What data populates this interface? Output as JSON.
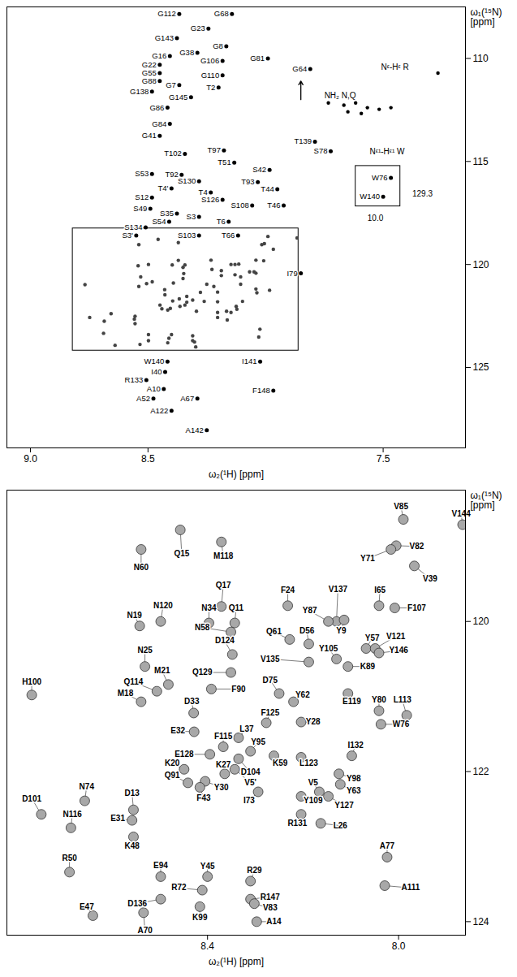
{
  "chart_data": [
    {
      "type": "scatter",
      "x_label": "ω₂(¹H) [ppm]",
      "y_label": "ω₁(¹⁵N) [ppm]",
      "xlim": [
        9.1,
        7.15
      ],
      "xticks": [
        {
          "value": 9,
          "label": "9.0"
        },
        8.5,
        7.5
      ],
      "ylim": [
        107.5,
        128.9
      ],
      "yticks": [
        110,
        115,
        120,
        125
      ],
      "color": "#000000",
      "peaks": {
        "labels": [
          "G112",
          "G23",
          "G68",
          "G143",
          "G8",
          "G38",
          "G16",
          "G106",
          "G81",
          "G64",
          "G22",
          "G55",
          "G110",
          "G88",
          "G7",
          "T2",
          "G138",
          "G145",
          "G86",
          "G84",
          "G41",
          "T139",
          "S78",
          "T97",
          "T102",
          "T51",
          "S42",
          "S53",
          "T92",
          "S130",
          "T93",
          "T44",
          "T4'",
          "T4",
          "S12",
          "S126",
          "T46",
          "S108",
          "S49",
          "S35",
          "S3",
          "S54",
          "T6",
          "S134",
          "S103",
          "T66",
          "S3'",
          "I79",
          "W140",
          "I141",
          "R133",
          "I40",
          "A10",
          "A52",
          "A67",
          "F148",
          "A122",
          "A142",
          "W76",
          "W140"
        ],
        "x": [
          8.367,
          8.243,
          8.143,
          8.377,
          8.167,
          8.29,
          8.407,
          8.183,
          7.99,
          7.81,
          8.45,
          8.45,
          8.183,
          8.45,
          8.367,
          8.2,
          8.483,
          8.317,
          8.417,
          8.407,
          8.45,
          7.79,
          7.723,
          8.177,
          8.343,
          8.133,
          7.983,
          8.483,
          8.357,
          8.283,
          8.033,
          7.95,
          8.4,
          8.233,
          8.483,
          8.183,
          7.923,
          8.057,
          8.49,
          8.377,
          8.283,
          8.41,
          8.157,
          8.51,
          8.283,
          8.117,
          8.55,
          7.85,
          8.417,
          8.023,
          8.507,
          8.427,
          8.433,
          8.477,
          8.29,
          7.967,
          8.4,
          8.25,
          7.467,
          7.5
        ],
        "y": [
          107.84,
          108.55,
          107.84,
          109.02,
          109.41,
          109.73,
          109.88,
          110.12,
          110.0,
          110.51,
          110.31,
          110.71,
          110.82,
          111.1,
          111.29,
          111.41,
          111.61,
          111.88,
          112.39,
          113.18,
          113.76,
          114.04,
          114.51,
          114.47,
          114.63,
          115.06,
          115.41,
          115.61,
          115.65,
          115.96,
          116.0,
          116.35,
          116.31,
          116.51,
          116.75,
          116.86,
          117.14,
          117.14,
          117.29,
          117.53,
          117.69,
          117.92,
          117.92,
          118.2,
          118.59,
          118.59,
          118.59,
          120.43,
          124.71,
          124.71,
          125.61,
          125.22,
          126.04,
          126.51,
          126.51,
          126.12,
          127.1,
          128.04,
          115.8,
          116.71
        ]
      },
      "unassigned_peaks": {
        "x": [
          7.733,
          7.667,
          7.617,
          7.567,
          7.517,
          7.467,
          7.65,
          7.593,
          7.267
        ],
        "y": [
          112.16,
          112.27,
          112.16,
          112.39,
          112.47,
          112.39,
          112.59,
          112.67,
          110.71
        ]
      },
      "annotations": [
        {
          "text": "NH₂ N,Q",
          "x": 7.683,
          "y": 111.8
        },
        {
          "text": "Nᵋ-Hᵋ R",
          "x": 7.45,
          "y": 110.43
        },
        {
          "text": "Nᵋ¹-Hᵋ¹ W",
          "x": 7.483,
          "y": 114.51
        },
        {
          "text": "129.3",
          "x": 7.333,
          "y": 116.59
        },
        {
          "text": "10.0",
          "x": 7.533,
          "y": 117.76
        }
      ],
      "boxes": [
        {
          "x": [
            7.617,
            7.427
          ],
          "y": [
            115.22,
            117.18
          ]
        }
      ],
      "arrows": [
        {
          "x1": 7.85,
          "y1": 112.0,
          "x2": 7.85,
          "y2": 111.1
        }
      ]
    },
    {
      "type": "scatter",
      "x_label": "ω₂(¹H) [ppm]",
      "y_label": "ω₁(¹⁵N) [ppm]",
      "xlim": [
        8.82,
        7.86
      ],
      "xticks": [
        8.4,
        {
          "value": 8,
          "label": "8.0"
        }
      ],
      "ylim": [
        118.25,
        124.18
      ],
      "yticks": [
        120,
        122,
        124
      ],
      "color": "#a8a8a8",
      "peaks": {
        "labels": [
          "V85",
          "V144",
          "Q15",
          "N60",
          "M118",
          "V82",
          "Y71",
          "V39",
          "Q17",
          "F24",
          "V137",
          "I65",
          "F107",
          "N120",
          "N19",
          "N34",
          "Q11",
          "Y87",
          "Y9",
          "D56",
          "Q61",
          "Y57",
          "V121",
          "Y146",
          "N58",
          "D124",
          "Y105",
          "V135",
          "N25",
          "Q129",
          "K89",
          "M21",
          "Q114",
          "M18",
          "H100",
          "D75",
          "F90",
          "Y62",
          "E119",
          "Y80",
          "L113",
          "W76",
          "D33",
          "F125",
          "Y28",
          "E32",
          "L37",
          "F115",
          "Y95",
          "E128",
          "I132",
          "K59",
          "L123",
          "D104",
          "K20",
          "K27",
          "Q91",
          "V5'",
          "Y98",
          "Y63",
          "V5",
          "Y30",
          "F43",
          "I73",
          "Y109",
          "Y127",
          "D101",
          "N74",
          "D13",
          "N116",
          "E31",
          "K48",
          "R131",
          "L26",
          "A77",
          "R50",
          "E94",
          "Y45",
          "R29",
          "R72",
          "A111",
          "D136",
          "R147",
          "V83",
          "E47",
          "K99",
          "A70",
          "A14"
        ],
        "x": [
          7.99,
          7.866,
          8.457,
          8.539,
          8.371,
          8.005,
          8.016,
          7.967,
          8.371,
          8.232,
          8.13,
          8.041,
          8.008,
          8.498,
          8.542,
          8.397,
          8.343,
          8.147,
          8.114,
          8.188,
          8.228,
          8.068,
          8.049,
          8.041,
          8.351,
          8.348,
          8.13,
          8.188,
          8.531,
          8.351,
          8.106,
          8.482,
          8.506,
          8.539,
          8.768,
          8.25,
          8.392,
          8.22,
          8.106,
          8.041,
          7.983,
          8.037,
          8.429,
          8.277,
          8.204,
          8.428,
          8.335,
          8.367,
          8.31,
          8.395,
          8.098,
          8.261,
          8.204,
          8.335,
          8.449,
          8.364,
          8.441,
          8.343,
          8.125,
          8.122,
          8.166,
          8.405,
          8.416,
          8.294,
          8.204,
          8.147,
          8.748,
          8.657,
          8.555,
          8.686,
          8.558,
          8.555,
          8.204,
          8.163,
          8.024,
          8.689,
          8.498,
          8.4,
          8.31,
          8.411,
          8.029,
          8.498,
          8.31,
          8.302,
          8.64,
          8.416,
          8.534,
          8.297
        ],
        "y": [
          118.64,
          118.71,
          118.78,
          119.04,
          118.94,
          118.99,
          119.04,
          119.26,
          119.8,
          119.79,
          120.0,
          119.79,
          119.82,
          120.0,
          120.06,
          120.02,
          120.02,
          120.0,
          119.98,
          120.3,
          120.24,
          120.36,
          120.36,
          120.42,
          120.14,
          120.44,
          120.5,
          120.54,
          120.6,
          120.68,
          120.6,
          120.84,
          120.93,
          121.07,
          120.98,
          120.96,
          120.9,
          121.07,
          120.96,
          121.19,
          121.25,
          121.37,
          121.22,
          121.35,
          121.34,
          121.47,
          121.55,
          121.67,
          121.73,
          121.77,
          121.79,
          121.79,
          121.81,
          121.83,
          121.97,
          122.03,
          122.15,
          121.97,
          122.03,
          122.17,
          122.27,
          122.13,
          122.21,
          122.27,
          122.33,
          122.33,
          122.57,
          122.39,
          122.51,
          122.75,
          122.65,
          122.87,
          122.57,
          122.69,
          123.14,
          123.34,
          123.4,
          123.4,
          123.46,
          123.58,
          123.52,
          123.7,
          123.7,
          123.76,
          123.92,
          123.8,
          123.88,
          124.0
        ],
        "label_x": [
          7.995,
          7.869,
          8.454,
          8.539,
          8.367,
          7.962,
          8.065,
          7.934,
          8.367,
          8.232,
          8.127,
          8.039,
          7.962,
          8.493,
          8.553,
          8.397,
          8.34,
          8.186,
          8.12,
          8.192,
          8.261,
          8.055,
          8.006,
          8.0,
          8.411,
          8.364,
          8.147,
          8.269,
          8.531,
          8.411,
          8.065,
          8.495,
          8.555,
          8.572,
          8.768,
          8.269,
          8.335,
          8.201,
          8.098,
          8.041,
          7.992,
          7.995,
          8.433,
          8.269,
          8.179,
          8.462,
          8.318,
          8.367,
          8.294,
          8.449,
          8.09,
          8.248,
          8.188,
          8.31,
          8.474,
          8.367,
          8.474,
          8.31,
          8.094,
          8.094,
          8.179,
          8.371,
          8.408,
          8.313,
          8.179,
          8.114,
          8.768,
          8.653,
          8.558,
          8.683,
          8.588,
          8.558,
          8.212,
          8.122,
          8.024,
          8.689,
          8.498,
          8.4,
          8.302,
          8.46,
          7.975,
          8.547,
          8.269,
          8.269,
          8.653,
          8.416,
          8.531,
          8.261
        ],
        "label_y": [
          118.47,
          118.57,
          119.1,
          119.28,
          119.13,
          119.0,
          119.16,
          119.43,
          119.52,
          119.58,
          119.57,
          119.58,
          119.82,
          119.79,
          119.92,
          119.82,
          119.82,
          119.86,
          120.12,
          120.13,
          120.14,
          120.22,
          120.2,
          120.39,
          120.08,
          120.26,
          120.36,
          120.5,
          120.39,
          120.68,
          120.6,
          120.66,
          120.81,
          120.96,
          120.81,
          120.78,
          120.9,
          120.98,
          121.07,
          121.05,
          121.05,
          121.37,
          121.07,
          121.22,
          121.34,
          121.46,
          121.43,
          121.53,
          121.61,
          121.77,
          121.65,
          121.89,
          121.89,
          122.01,
          121.89,
          121.91,
          122.05,
          122.15,
          122.09,
          122.26,
          122.15,
          122.21,
          122.35,
          122.39,
          122.39,
          122.45,
          122.36,
          122.2,
          122.29,
          122.57,
          122.63,
          122.99,
          122.69,
          122.72,
          122.99,
          123.16,
          123.25,
          123.26,
          123.32,
          123.55,
          123.55,
          123.76,
          123.67,
          123.82,
          123.8,
          123.94,
          124.12,
          124.0
        ]
      }
    }
  ]
}
